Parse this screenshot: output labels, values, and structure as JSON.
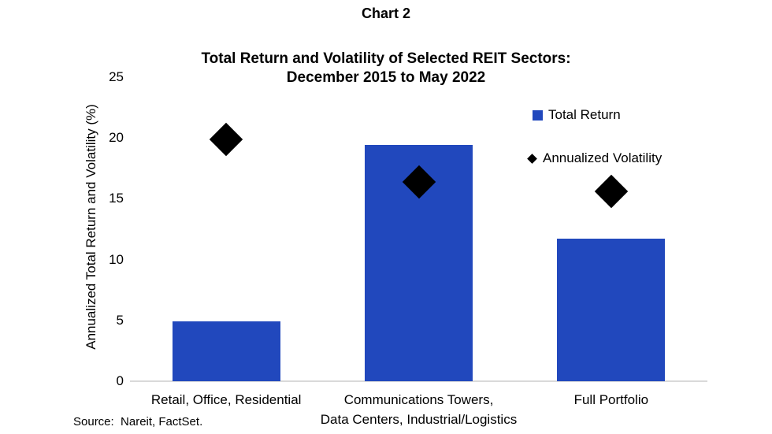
{
  "page": {
    "title": "Chart 2",
    "source": "Source:  Nareit, FactSet."
  },
  "chart_data": {
    "type": "bar",
    "title": "Total Return and Volatility of Selected REIT Sectors: December 2015 to May 2022",
    "title_lines": [
      "Total Return and Volatility of Selected REIT Sectors:",
      "December 2015 to May 2022"
    ],
    "ylabel": "Annualized Total Return and Volatility (%)",
    "xlabel": "",
    "ylim": [
      0,
      25
    ],
    "yticks": [
      0,
      5,
      10,
      15,
      20,
      25
    ],
    "grid": false,
    "legend_position": "upper right",
    "categories": [
      "Retail, Office, Residential",
      "Communications Towers,\nData Centers, Industrial/Logistics",
      "Full Portfolio"
    ],
    "series": [
      {
        "name": "Total Return",
        "type": "bar",
        "marker": "square",
        "values": [
          4.9,
          19.4,
          11.7
        ]
      },
      {
        "name": "Annualized Volatility",
        "type": "scatter",
        "marker": "diamond",
        "values": [
          19.9,
          16.4,
          15.6
        ]
      }
    ]
  },
  "colors": {
    "bar": "#2148bd",
    "marker": "#000000",
    "axis_line": "#d9d9d9",
    "text": "#000000"
  }
}
